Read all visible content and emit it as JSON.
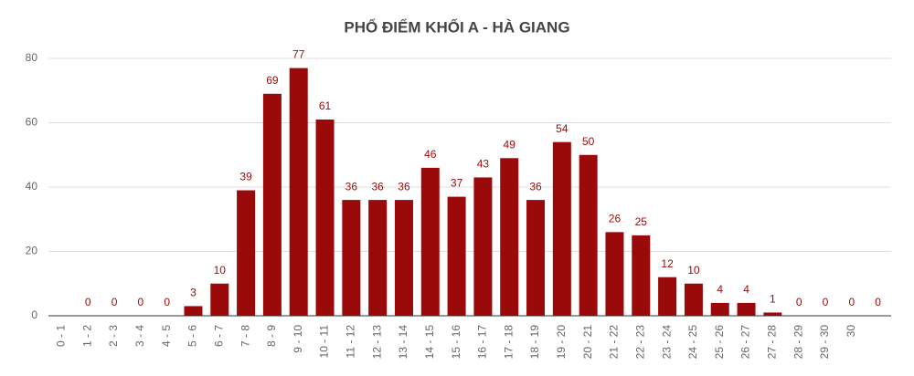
{
  "chart_data": {
    "type": "bar",
    "title": "PHỔ ĐIỂM KHỐI A - HÀ GIANG",
    "categories": [
      "0 - 1",
      "1 - 2",
      "2 - 3",
      "3 - 4",
      "4 - 5",
      "5 - 6",
      "6 - 7",
      "7 - 8",
      "8 - 9",
      "9 - 10",
      "10 - 11",
      "11 - 12",
      "12 - 13",
      "13 - 14",
      "14 - 15",
      "15 - 16",
      "16 - 17",
      "17 - 18",
      "18 - 19",
      "19 - 20",
      "20 - 21",
      "21 - 22",
      "22 - 23",
      "23 - 24",
      "24 - 25",
      "25 - 26",
      "26 - 27",
      "27 - 28",
      "28 - 29",
      "29 - 30",
      "30",
      null
    ],
    "values": [
      null,
      0,
      0,
      0,
      0,
      3,
      10,
      39,
      69,
      77,
      61,
      36,
      36,
      36,
      46,
      37,
      43,
      49,
      36,
      54,
      50,
      26,
      25,
      12,
      10,
      4,
      4,
      1,
      0,
      0,
      0,
      0
    ],
    "color": "#9b0a0a",
    "ylim": [
      0,
      80
    ],
    "yticks": [
      0,
      20,
      40,
      60,
      80
    ],
    "grid": true
  }
}
